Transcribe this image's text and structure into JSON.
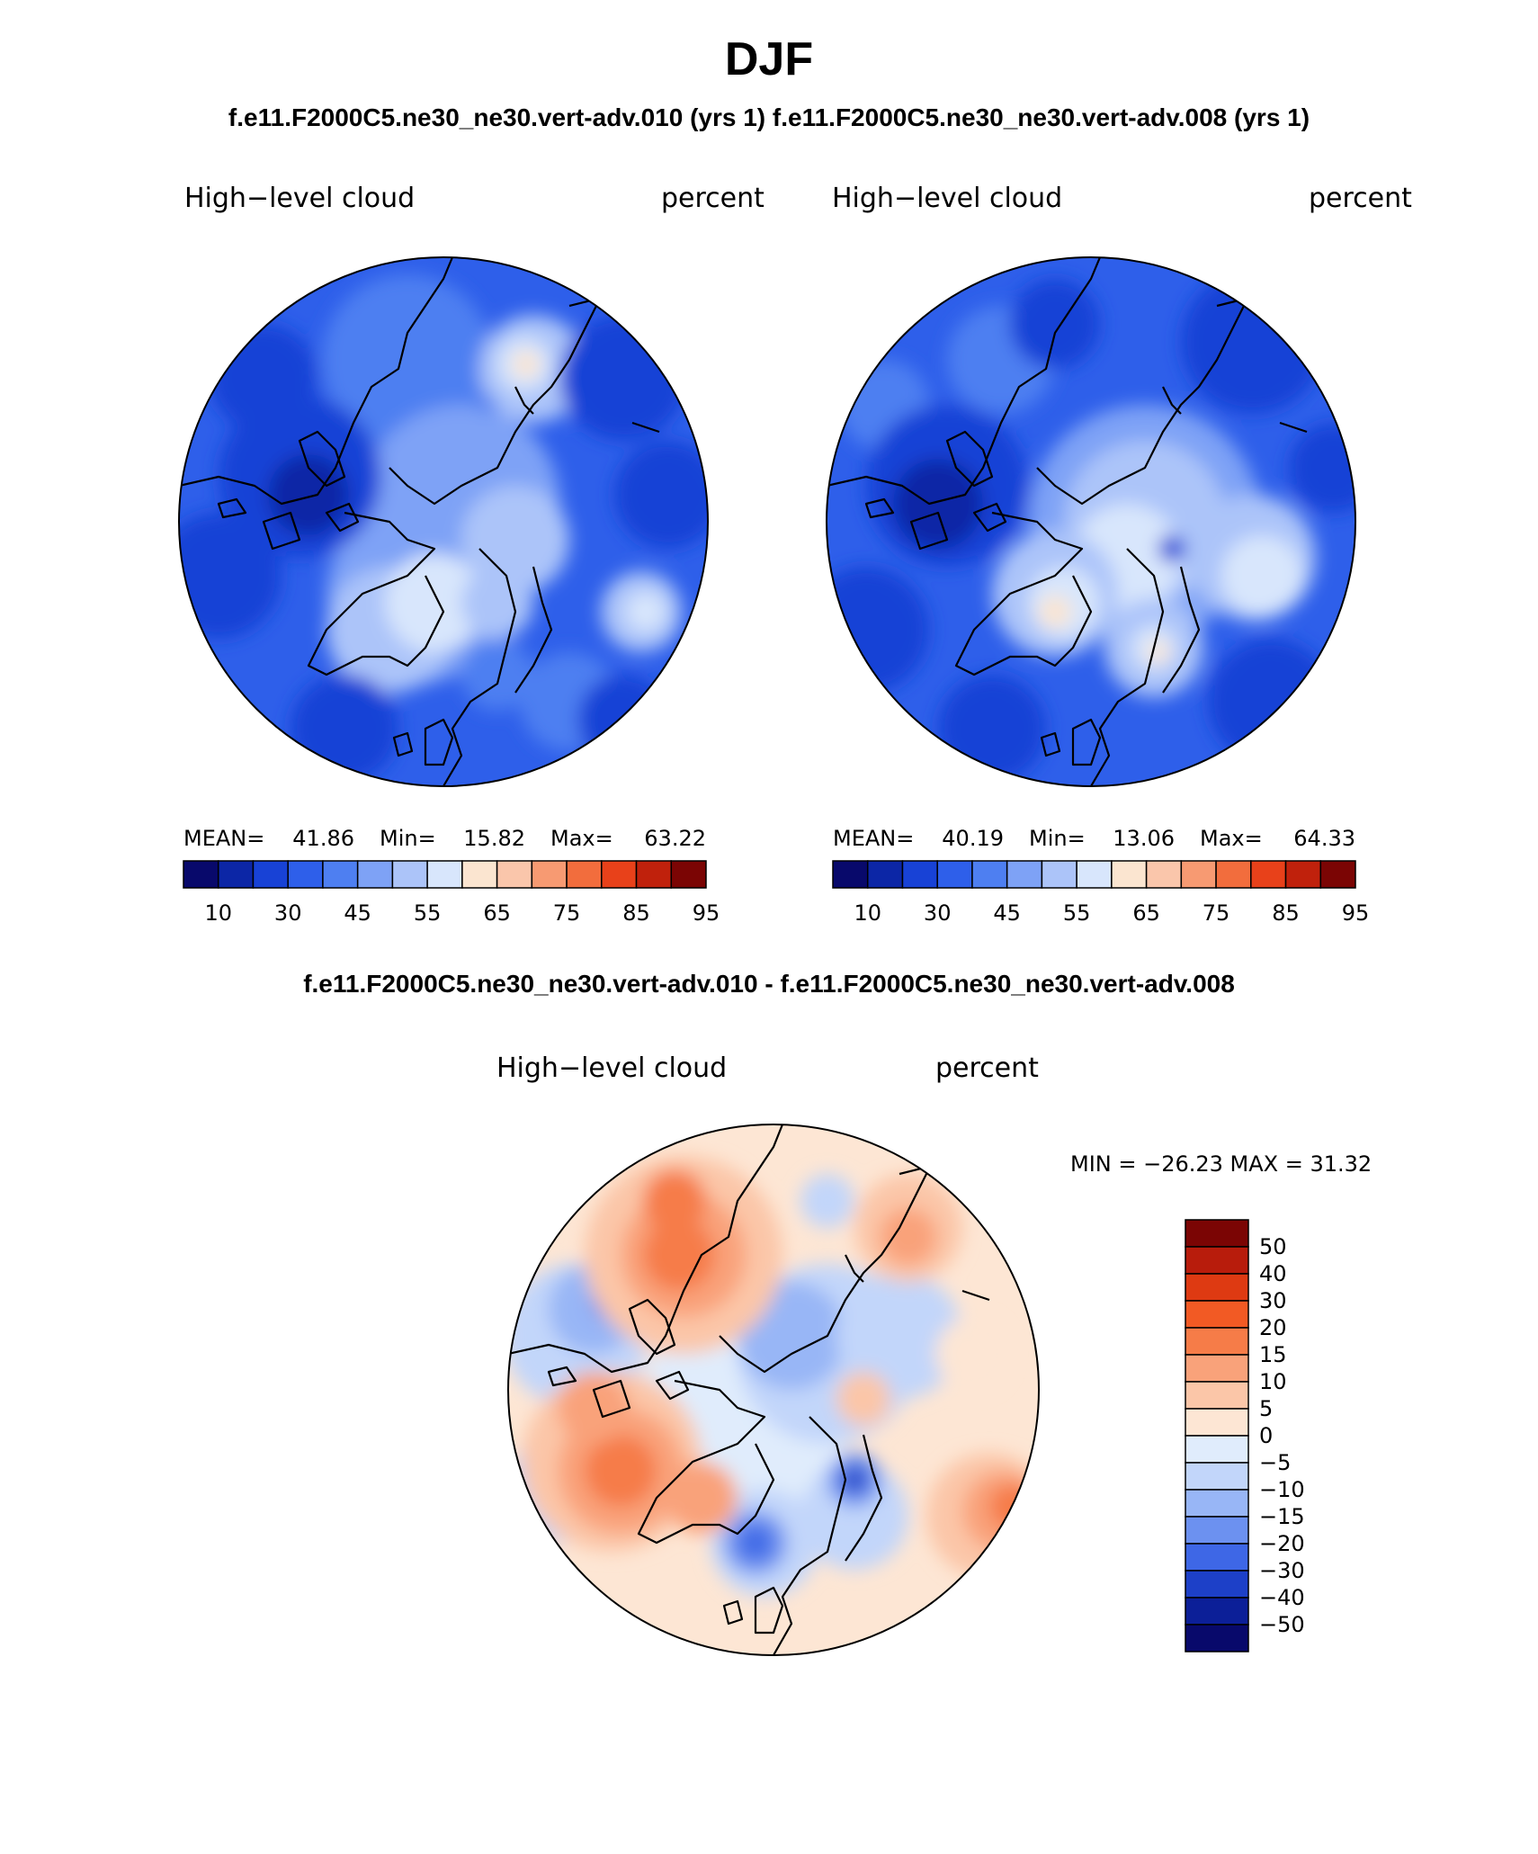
{
  "page": {
    "title": "DJF",
    "subtitle_top": "f.e11.F2000C5.ne30_ne30.vert-adv.010 (yrs 1) f.e11.F2000C5.ne30_ne30.vert-adv.008 (yrs 1)",
    "subtitle_diff": "f.e11.F2000C5.ne30_ne30.vert-adv.010 - f.e11.F2000C5.ne30_ne30.vert-adv.008"
  },
  "chart_data": [
    {
      "type": "polar_contour_map",
      "id": "case-010",
      "variable": "High−level cloud",
      "units": "percent",
      "stats": {
        "mean_label": "MEAN=",
        "mean": "41.86",
        "min_label": "Min=",
        "min": "15.82",
        "max_label": "Max=",
        "max": "63.22"
      },
      "levels": [
        10,
        30,
        45,
        55,
        65,
        75,
        85,
        95
      ],
      "colors": [
        "#08096b",
        "#0c26a6",
        "#1842d6",
        "#2e5fea",
        "#4e7ff1",
        "#7ea2f6",
        "#acc4f9",
        "#d8e6fc",
        "#fbe5d0",
        "#fac6ab",
        "#f79a72",
        "#f26d3d",
        "#e8411a",
        "#c0210c",
        "#7b0504"
      ]
    },
    {
      "type": "polar_contour_map",
      "id": "case-008",
      "variable": "High−level cloud",
      "units": "percent",
      "stats": {
        "mean_label": "MEAN=",
        "mean": "40.19",
        "min_label": "Min=",
        "min": "13.06",
        "max_label": "Max=",
        "max": "64.33"
      },
      "levels": [
        10,
        30,
        45,
        55,
        65,
        75,
        85,
        95
      ],
      "colors": [
        "#08096b",
        "#0c26a6",
        "#1842d6",
        "#2e5fea",
        "#4e7ff1",
        "#7ea2f6",
        "#acc4f9",
        "#d8e6fc",
        "#fbe5d0",
        "#fac6ab",
        "#f79a72",
        "#f26d3d",
        "#e8411a",
        "#c0210c",
        "#7b0504"
      ]
    },
    {
      "type": "polar_contour_map",
      "id": "difference",
      "variable": "High−level cloud",
      "units": "percent",
      "stats": {
        "text": "MIN = −26.23 MAX =   31.32"
      },
      "levels": [
        "50",
        "40",
        "30",
        "20",
        "15",
        "10",
        "5",
        "0",
        "−5",
        "−10",
        "−15",
        "−20",
        "−30",
        "−40",
        "−50"
      ],
      "colors": [
        "#7b0504",
        "#b81c0c",
        "#de3a12",
        "#f25a24",
        "#f67c48",
        "#f9a27a",
        "#fbc6a8",
        "#fde6d4",
        "#e0ecfc",
        "#c2d6fa",
        "#98b6f6",
        "#6c91f0",
        "#3e67e6",
        "#1d40c8",
        "#0c1f98",
        "#08096b"
      ]
    }
  ]
}
